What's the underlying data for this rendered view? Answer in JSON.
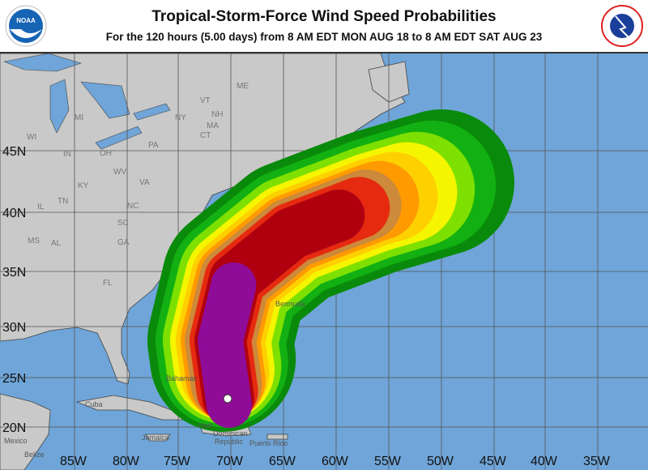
{
  "header": {
    "title": "Tropical-Storm-Force Wind Speed Probabilities",
    "subtitle": "For the 120 hours (5.00 days) from 8 AM EDT MON AUG 18 to 8 AM EDT SAT AUG 23",
    "left_logo": "NOAA",
    "right_logo": "NATIONAL WEATHER SERVICE"
  },
  "map": {
    "ocean_color": "#6fa5d8",
    "land_color": "#c9c9c9",
    "lon_labels": [
      "85W",
      "80W",
      "75W",
      "70W",
      "65W",
      "60W",
      "55W",
      "50W",
      "45W",
      "40W",
      "35W"
    ],
    "lat_labels": [
      "45N",
      "40N",
      "35N",
      "30N",
      "25N",
      "20N"
    ],
    "state_labels": [
      "WI",
      "MI",
      "NY",
      "VT",
      "NH",
      "ME",
      "MA",
      "CT",
      "PA",
      "IL",
      "IN",
      "OH",
      "WV",
      "VA",
      "KY",
      "TN",
      "NC",
      "SC",
      "GA",
      "AL",
      "MS",
      "FL"
    ],
    "place_labels": [
      "Bermuda",
      "Bahamas",
      "Cuba",
      "Jamaica",
      "Haiti",
      "Dominican",
      "Republic",
      "Puerto Rico",
      "Mexico",
      "Belize"
    ],
    "probability_band_colors": [
      "#0a8a0a",
      "#12b012",
      "#7ee000",
      "#f5f500",
      "#ffd000",
      "#ff9a00",
      "#cc8a3a",
      "#e62a10",
      "#b00010",
      "#8e0c98"
    ],
    "storm_center_marker": "white-dot"
  }
}
